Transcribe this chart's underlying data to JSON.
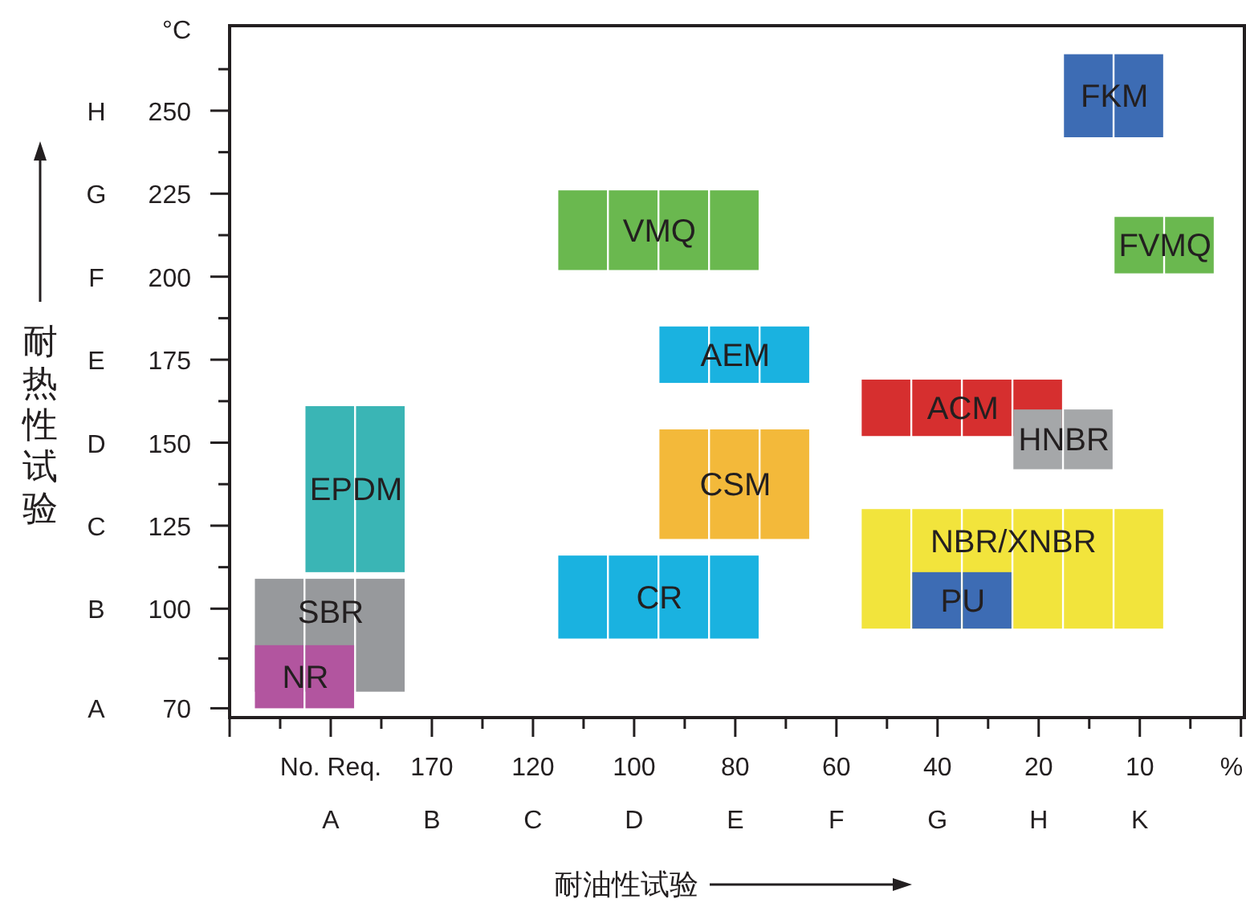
{
  "chart_data": {
    "type": "bar",
    "xlabel": "耐油性试验",
    "ylabel": "耐热性试验",
    "categories": [
      null,
      null,
      "No. Req.\nA",
      null,
      "170\nB",
      null,
      "120\nC",
      null,
      "100\nD",
      null,
      "80\nE",
      null,
      "60\nF",
      null,
      "40\nG",
      null,
      "20\nH",
      null,
      "10\nK",
      null,
      null
    ],
    "ylim": [
      67.2,
      275.6
    ],
    "yticks": [
      70,
      100,
      125,
      150,
      175,
      200,
      225,
      250
    ],
    "annotations": [
      "°C",
      "%",
      "A",
      "B",
      "C",
      "D",
      "E",
      "F",
      "G",
      "H"
    ],
    "series": [
      {
        "name": "FKM",
        "color": "#3d6cb4",
        "values": [
          null,
          null,
          null,
          null,
          null,
          null,
          null,
          null,
          null,
          null,
          null,
          null,
          null,
          null,
          null,
          null,
          null,
          25,
          25,
          null,
          null
        ],
        "base": [
          null,
          null,
          null,
          null,
          null,
          null,
          null,
          null,
          null,
          null,
          null,
          null,
          null,
          null,
          null,
          null,
          null,
          242,
          242,
          null,
          null
        ]
      },
      {
        "name": "VMQ",
        "color": "#6ab84f",
        "values": [
          null,
          null,
          null,
          null,
          null,
          null,
          null,
          24,
          24,
          24,
          24,
          null,
          null,
          null,
          null,
          null,
          null,
          null,
          null,
          null,
          null
        ],
        "base": [
          null,
          null,
          null,
          null,
          null,
          null,
          null,
          202,
          202,
          202,
          202,
          null,
          null,
          null,
          null,
          null,
          null,
          null,
          null,
          null,
          null
        ]
      },
      {
        "name": "FVMQ",
        "color": "#6ab84f",
        "values": [
          null,
          null,
          null,
          null,
          null,
          null,
          null,
          null,
          null,
          null,
          null,
          null,
          null,
          null,
          null,
          null,
          null,
          null,
          17,
          17,
          null
        ],
        "base": [
          null,
          null,
          null,
          null,
          null,
          null,
          null,
          null,
          null,
          null,
          null,
          null,
          null,
          null,
          null,
          null,
          null,
          null,
          201,
          201,
          null
        ]
      },
      {
        "name": "AEM",
        "color": "#1ab2e0",
        "values": [
          null,
          null,
          null,
          null,
          null,
          null,
          null,
          null,
          null,
          17,
          17,
          17,
          null,
          null,
          null,
          null,
          null,
          null,
          null,
          null,
          null
        ],
        "base": [
          null,
          null,
          null,
          null,
          null,
          null,
          null,
          null,
          null,
          168,
          168,
          168,
          null,
          null,
          null,
          null,
          null,
          null,
          null,
          null,
          null
        ]
      },
      {
        "name": "ACM",
        "color": "#d62f2f",
        "values": [
          null,
          null,
          null,
          null,
          null,
          null,
          null,
          null,
          null,
          null,
          null,
          null,
          null,
          17,
          17,
          17,
          17,
          null,
          null,
          null,
          null
        ],
        "base": [
          null,
          null,
          null,
          null,
          null,
          null,
          null,
          null,
          null,
          null,
          null,
          null,
          null,
          152,
          152,
          152,
          152,
          null,
          null,
          null,
          null
        ]
      },
      {
        "name": "HNBR",
        "color": "#a5a7a9",
        "values": [
          null,
          null,
          null,
          null,
          null,
          null,
          null,
          null,
          null,
          null,
          null,
          null,
          null,
          null,
          null,
          null,
          18,
          18,
          null,
          null,
          null
        ],
        "base": [
          null,
          null,
          null,
          null,
          null,
          null,
          null,
          null,
          null,
          null,
          null,
          null,
          null,
          null,
          null,
          null,
          142,
          142,
          null,
          null,
          null
        ]
      },
      {
        "name": "EPDM",
        "color": "#3ab5b5",
        "values": [
          null,
          null,
          50,
          50,
          null,
          null,
          null,
          null,
          null,
          null,
          null,
          null,
          null,
          null,
          null,
          null,
          null,
          null,
          null,
          null,
          null
        ],
        "base": [
          null,
          null,
          111,
          111,
          null,
          null,
          null,
          null,
          null,
          null,
          null,
          null,
          null,
          null,
          null,
          null,
          null,
          null,
          null,
          null,
          null
        ]
      },
      {
        "name": "CSM",
        "color": "#f3b93a",
        "values": [
          null,
          null,
          null,
          null,
          null,
          null,
          null,
          null,
          null,
          33,
          33,
          33,
          null,
          null,
          null,
          null,
          null,
          null,
          null,
          null,
          null
        ],
        "base": [
          null,
          null,
          null,
          null,
          null,
          null,
          null,
          null,
          null,
          121,
          121,
          121,
          null,
          null,
          null,
          null,
          null,
          null,
          null,
          null,
          null
        ]
      },
      {
        "name": "NBR/XNBR",
        "color": "#f2e43c",
        "values": [
          null,
          null,
          null,
          null,
          null,
          null,
          null,
          null,
          null,
          null,
          null,
          null,
          null,
          36,
          36,
          36,
          36,
          36,
          36,
          null,
          null
        ],
        "base": [
          null,
          null,
          null,
          null,
          null,
          null,
          null,
          null,
          null,
          null,
          null,
          null,
          null,
          94,
          94,
          94,
          94,
          94,
          94,
          null,
          null
        ]
      },
      {
        "name": "PU",
        "color": "#3d6cb4",
        "values": [
          null,
          null,
          null,
          null,
          null,
          null,
          null,
          null,
          null,
          null,
          null,
          null,
          null,
          null,
          17,
          17,
          null,
          null,
          null,
          null,
          null
        ],
        "base": [
          null,
          null,
          null,
          null,
          null,
          null,
          null,
          null,
          null,
          null,
          null,
          null,
          null,
          null,
          94,
          94,
          null,
          null,
          null,
          null,
          null
        ]
      },
      {
        "name": "CR",
        "color": "#1ab2e0",
        "values": [
          null,
          null,
          null,
          null,
          null,
          null,
          null,
          25,
          25,
          25,
          25,
          null,
          null,
          null,
          null,
          null,
          null,
          null,
          null,
          null,
          null
        ],
        "base": [
          null,
          null,
          null,
          null,
          null,
          null,
          null,
          91,
          91,
          91,
          91,
          null,
          null,
          null,
          null,
          null,
          null,
          null,
          null,
          null,
          null
        ]
      },
      {
        "name": "SBR",
        "color": "#97999c",
        "values": [
          null,
          34,
          34,
          34,
          null,
          null,
          null,
          null,
          null,
          null,
          null,
          null,
          null,
          null,
          null,
          null,
          null,
          null,
          null,
          null,
          null
        ],
        "base": [
          null,
          75,
          75,
          75,
          null,
          null,
          null,
          null,
          null,
          null,
          null,
          null,
          null,
          null,
          null,
          null,
          null,
          null,
          null,
          null,
          null
        ]
      },
      {
        "name": "NR",
        "color": "#b2559f",
        "values": [
          null,
          19,
          19,
          null,
          null,
          null,
          null,
          null,
          null,
          null,
          null,
          null,
          null,
          null,
          null,
          null,
          null,
          null,
          null,
          null,
          null
        ],
        "base": [
          null,
          70,
          70,
          null,
          null,
          null,
          null,
          null,
          null,
          null,
          null,
          null,
          null,
          null,
          null,
          null,
          null,
          null,
          null,
          null,
          null
        ]
      }
    ]
  }
}
